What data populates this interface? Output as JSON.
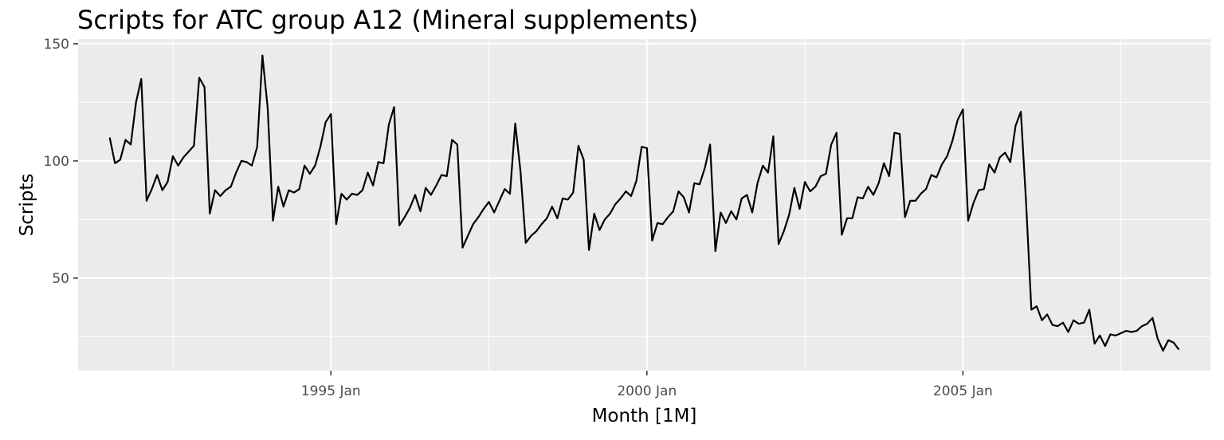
{
  "chart_data": {
    "type": "line",
    "title": "Scripts for ATC group A12 (Mineral supplements)",
    "xlabel": "Month [1M]",
    "ylabel": "Scripts",
    "x_start": "1991 Jul",
    "x_frequency": "monthly",
    "xlim": [
      "1991 Jan",
      "2008 Dec"
    ],
    "ylim": [
      10.5,
      152
    ],
    "x_ticks": [
      "1995 Jan",
      "2000 Jan",
      "2005 Jan"
    ],
    "y_ticks": [
      50,
      100,
      150
    ],
    "grid": true,
    "colors": {
      "panel": "#ebebeb",
      "grid": "#ffffff",
      "line": "#000000"
    },
    "series": [
      {
        "values": [
          110,
          99,
          100.5,
          109,
          107,
          125,
          135,
          83,
          88,
          94,
          87.5,
          91,
          102,
          98,
          101.5,
          104,
          106.5,
          135.5,
          131.5,
          77.5,
          87.5,
          85,
          87.5,
          89,
          95,
          100,
          99.5,
          98,
          106,
          145,
          122.5,
          74.5,
          89,
          80.5,
          87.5,
          86.5,
          88,
          98,
          94.5,
          98,
          106,
          116.5,
          120,
          73,
          86,
          83.5,
          86,
          85.5,
          87.5,
          95,
          89.5,
          99.5,
          99,
          115.5,
          123,
          72.5,
          76,
          80,
          85.5,
          78.5,
          88.5,
          85.5,
          89.5,
          94,
          93.5,
          109,
          107,
          63,
          68,
          73,
          76,
          79.5,
          82.5,
          78,
          83,
          88,
          86,
          116,
          95.5,
          65,
          68,
          70,
          73,
          75.5,
          80.5,
          75.5,
          84,
          83.5,
          86.5,
          106.5,
          100.5,
          62,
          77.5,
          70.5,
          75,
          77.5,
          81.5,
          84,
          87,
          85,
          91.5,
          106,
          105.5,
          66,
          73.5,
          73,
          76,
          78.5,
          87,
          84.5,
          78,
          90.5,
          90,
          97,
          107,
          61.5,
          78,
          73.5,
          78.5,
          75,
          84,
          85.5,
          78,
          90.5,
          98,
          95,
          110.5,
          64.5,
          70,
          77,
          88.5,
          79.5,
          91,
          87,
          89,
          93.5,
          94.5,
          107,
          112,
          68.5,
          75.5,
          75.5,
          84.5,
          84,
          89,
          85.5,
          90.5,
          99,
          93.5,
          112,
          111.5,
          76,
          83,
          83,
          86,
          88,
          94,
          93,
          98.5,
          102,
          108.5,
          117.5,
          122,
          74.5,
          82,
          87.5,
          88,
          98.5,
          95,
          101.5,
          103.5,
          99.5,
          115,
          121,
          82,
          36.5,
          38,
          32,
          34.5,
          30,
          29.5,
          31,
          27,
          32,
          30.5,
          31,
          36.5,
          22,
          25.5,
          21,
          26,
          25.5,
          26.5,
          27.5,
          27,
          27.5,
          29.5,
          30.5,
          33,
          24,
          19,
          23.5,
          22.5,
          19.5
        ]
      }
    ]
  }
}
